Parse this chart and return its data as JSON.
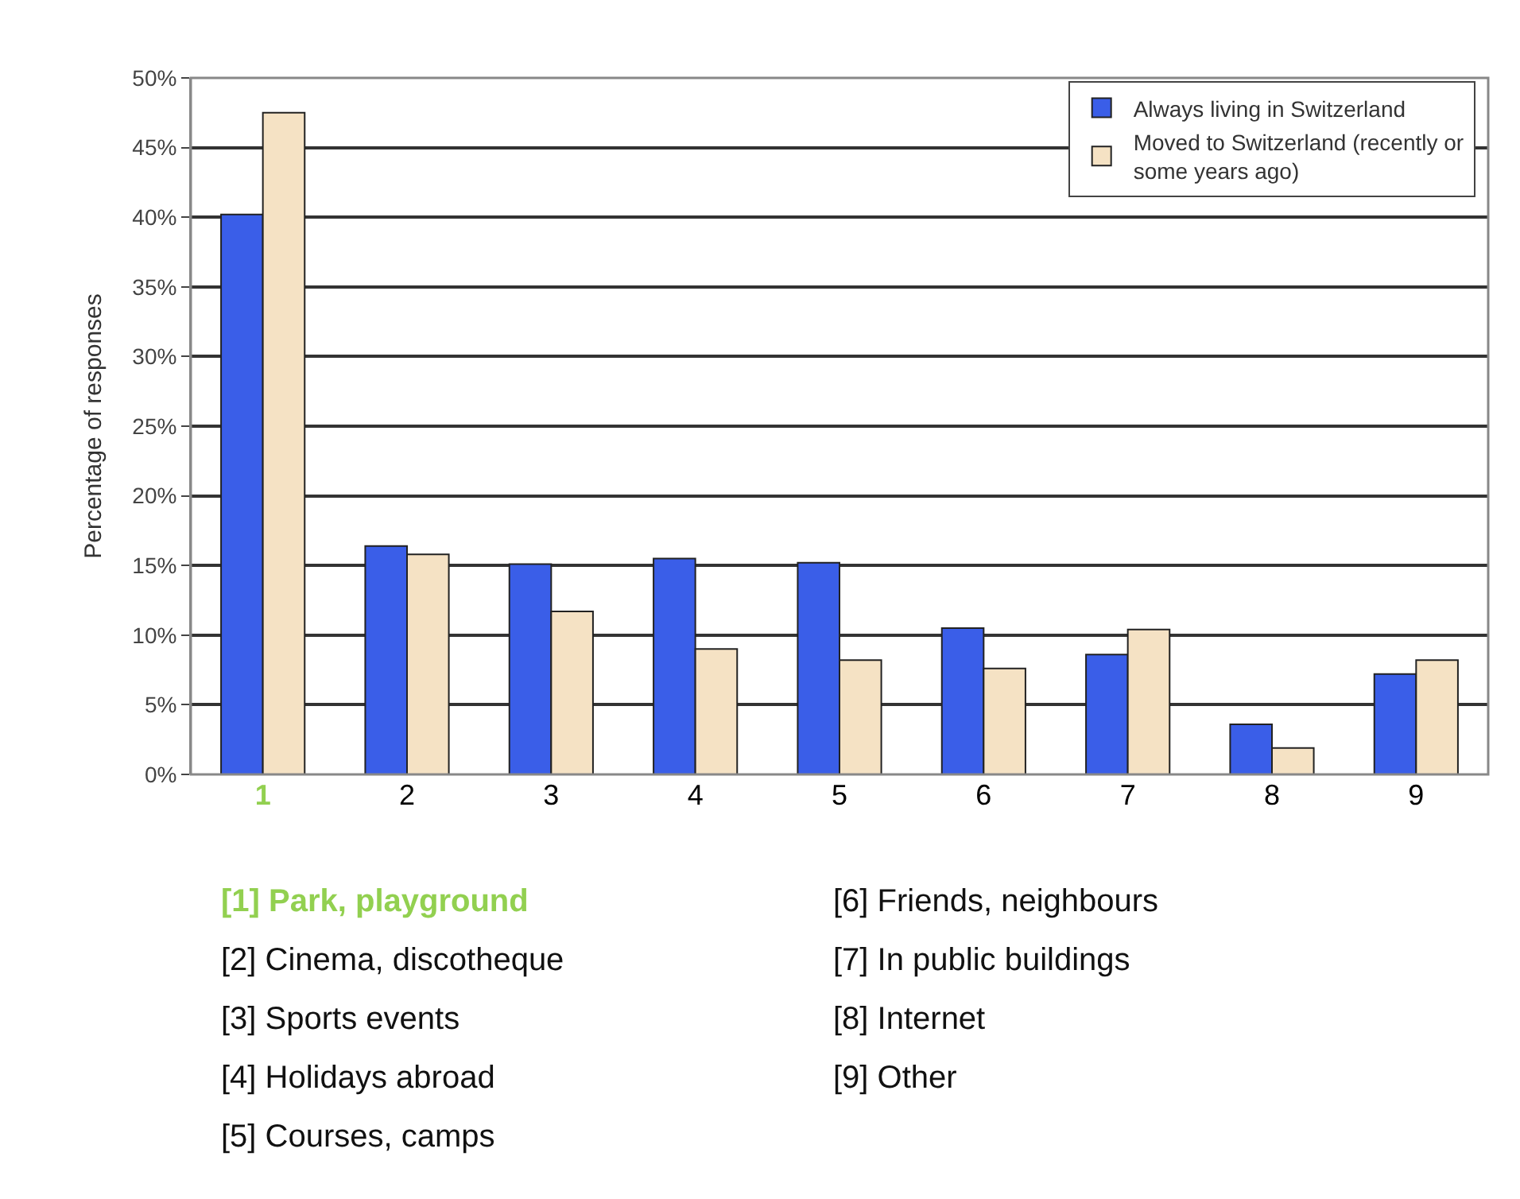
{
  "chart_data": {
    "type": "bar",
    "ylabel": "Percentage of responses",
    "categories": [
      "1",
      "2",
      "3",
      "4",
      "5",
      "6",
      "7",
      "8",
      "9"
    ],
    "series": [
      {
        "name": "Always living in Switzerland",
        "color": "#3a5ee8",
        "values": [
          40.2,
          16.4,
          15.1,
          15.5,
          15.2,
          10.5,
          8.6,
          3.6,
          7.2
        ]
      },
      {
        "name": "Moved to Switzerland (recently or some years ago)",
        "color": "#f5e2c4",
        "values": [
          47.5,
          15.8,
          11.7,
          9.0,
          8.2,
          7.6,
          10.4,
          1.9,
          8.2
        ]
      }
    ],
    "ylim": [
      0,
      50
    ],
    "yticks": [
      {
        "value": 0,
        "label": "0%"
      },
      {
        "value": 5,
        "label": "5%"
      },
      {
        "value": 10,
        "label": "10%"
      },
      {
        "value": 15,
        "label": "15%"
      },
      {
        "value": 20,
        "label": "20%"
      },
      {
        "value": 25,
        "label": "25%"
      },
      {
        "value": 30,
        "label": "30%"
      },
      {
        "value": 35,
        "label": "35%"
      },
      {
        "value": 40,
        "label": "40%"
      },
      {
        "value": 45,
        "label": "45%"
      },
      {
        "value": 50,
        "label": "50%"
      }
    ],
    "grid": "y",
    "legend": "top right",
    "annotations": [
      "[1] Park, playground",
      "[2] Cinema, discotheque",
      "[3] Sports events",
      "[4] Holidays abroad",
      "[5] Courses, camps",
      "[6] Friends, neighbours",
      "[7] In public buildings",
      "[8] Internet",
      "[9] Other"
    ]
  }
}
